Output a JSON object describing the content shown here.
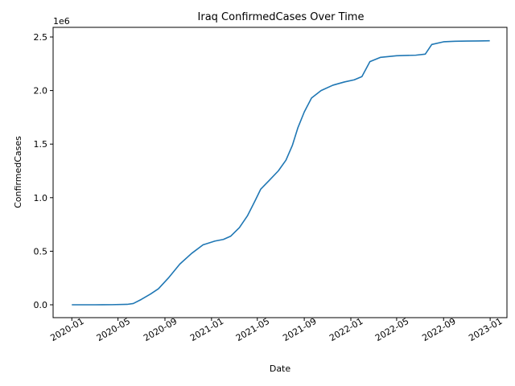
{
  "chart_data": {
    "type": "line",
    "title": "Iraq  ConfirmedCases Over Time",
    "xlabel": "Date",
    "ylabel": "ConfirmedCases",
    "y_offset_label": "1e6",
    "grid": false,
    "xlim": [
      "2019-11-13",
      "2023-02-14"
    ],
    "ylim": [
      -0.12,
      2.59
    ],
    "x_ticks": [
      "2020-01",
      "2020-05",
      "2020-09",
      "2021-01",
      "2021-05",
      "2021-09",
      "2022-01",
      "2022-05",
      "2022-09",
      "2023-01"
    ],
    "y_ticks": [
      "0.0",
      "0.5",
      "1.0",
      "1.5",
      "2.0",
      "2.5"
    ],
    "series": [
      {
        "color": "#1f77b4",
        "x": [
          "2020-01-01",
          "2020-03-01",
          "2020-04-15",
          "2020-05-25",
          "2020-06-10",
          "2020-07-01",
          "2020-07-25",
          "2020-08-15",
          "2020-09-10",
          "2020-10-10",
          "2020-11-10",
          "2020-12-10",
          "2021-01-10",
          "2021-02-01",
          "2021-02-20",
          "2021-03-15",
          "2021-04-05",
          "2021-04-25",
          "2021-05-10",
          "2021-06-01",
          "2021-06-25",
          "2021-07-15",
          "2021-08-01",
          "2021-08-15",
          "2021-09-01",
          "2021-09-20",
          "2021-10-15",
          "2021-11-15",
          "2021-12-15",
          "2022-01-10",
          "2022-01-30",
          "2022-02-20",
          "2022-03-20",
          "2022-05-01",
          "2022-06-20",
          "2022-07-15",
          "2022-08-01",
          "2022-09-01",
          "2022-10-01",
          "2022-11-01",
          "2022-12-01",
          "2022-12-31"
        ],
        "y": [
          0.0,
          0.0,
          0.001,
          0.004,
          0.012,
          0.05,
          0.1,
          0.15,
          0.25,
          0.38,
          0.48,
          0.56,
          0.595,
          0.61,
          0.64,
          0.72,
          0.83,
          0.97,
          1.08,
          1.16,
          1.25,
          1.35,
          1.49,
          1.65,
          1.8,
          1.93,
          2.0,
          2.05,
          2.08,
          2.1,
          2.13,
          2.27,
          2.31,
          2.325,
          2.33,
          2.34,
          2.43,
          2.455,
          2.46,
          2.462,
          2.463,
          2.465
        ]
      }
    ]
  }
}
